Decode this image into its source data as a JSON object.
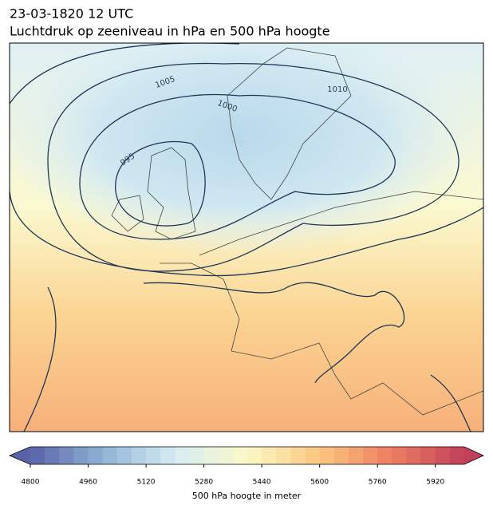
{
  "header": {
    "title": "23-03-1820 12 UTC",
    "subtitle": "Luchtdruk op zeeniveau in hPa en 500 hPa hoogte"
  },
  "map": {
    "contour_labels": [
      "1005",
      "1000",
      "995",
      "1010"
    ]
  },
  "colorbar": {
    "label": "500 hPa hoogte in meter",
    "range": [
      4800,
      6000
    ],
    "step": 40,
    "ticks": [
      4800,
      4960,
      5120,
      5280,
      5440,
      5600,
      5760,
      5920
    ],
    "colors": [
      "#5a62a8",
      "#8fb3d6",
      "#d6ecf3",
      "#fbf9c8",
      "#fbc67f",
      "#ee7d62",
      "#c0405a"
    ],
    "extend": "both"
  }
}
